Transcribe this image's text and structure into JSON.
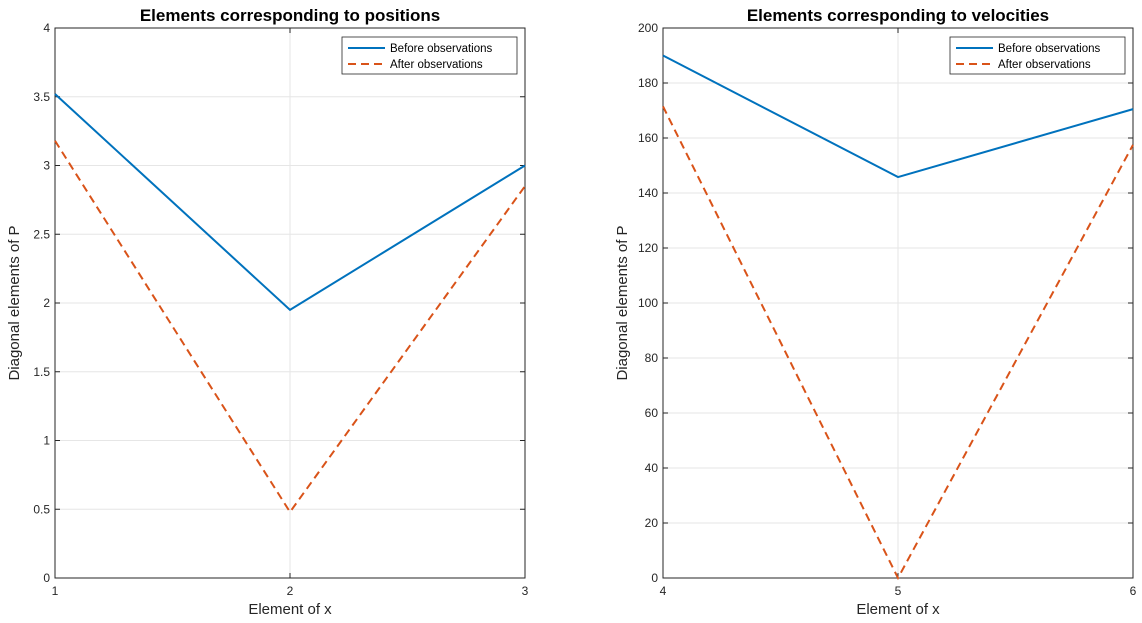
{
  "chart_data": [
    {
      "type": "line",
      "title": "Elements corresponding to positions",
      "xlabel": "Element of x",
      "ylabel": "Diagonal elements of P",
      "xlim": [
        1,
        3
      ],
      "ylim": [
        0,
        4
      ],
      "xticks": [
        1,
        2,
        3
      ],
      "yticks": [
        0,
        0.5,
        1,
        1.5,
        2,
        2.5,
        3,
        3.5,
        4
      ],
      "grid": true,
      "legend_placement": "top-right",
      "x": [
        1,
        2,
        3
      ],
      "series": [
        {
          "name": "Before observations",
          "values": [
            3.52,
            1.95,
            3.0
          ],
          "color": "#0072BD",
          "style": "solid"
        },
        {
          "name": "After observations",
          "values": [
            3.18,
            0.48,
            2.85
          ],
          "color": "#D95319",
          "style": "dashed"
        }
      ]
    },
    {
      "type": "line",
      "title": "Elements corresponding to velocities",
      "xlabel": "Element of x",
      "ylabel": "Diagonal elements of P",
      "xlim": [
        4,
        6
      ],
      "ylim": [
        0,
        200
      ],
      "xticks": [
        4,
        5,
        6
      ],
      "yticks": [
        0,
        20,
        40,
        60,
        80,
        100,
        120,
        140,
        160,
        180,
        200
      ],
      "grid": true,
      "legend_placement": "top-right",
      "x": [
        4,
        5,
        6
      ],
      "series": [
        {
          "name": "Before observations",
          "values": [
            190,
            145.8,
            170.5
          ],
          "color": "#0072BD",
          "style": "solid"
        },
        {
          "name": "After observations",
          "values": [
            171.5,
            0,
            157.5
          ],
          "color": "#D95319",
          "style": "dashed"
        }
      ]
    }
  ]
}
